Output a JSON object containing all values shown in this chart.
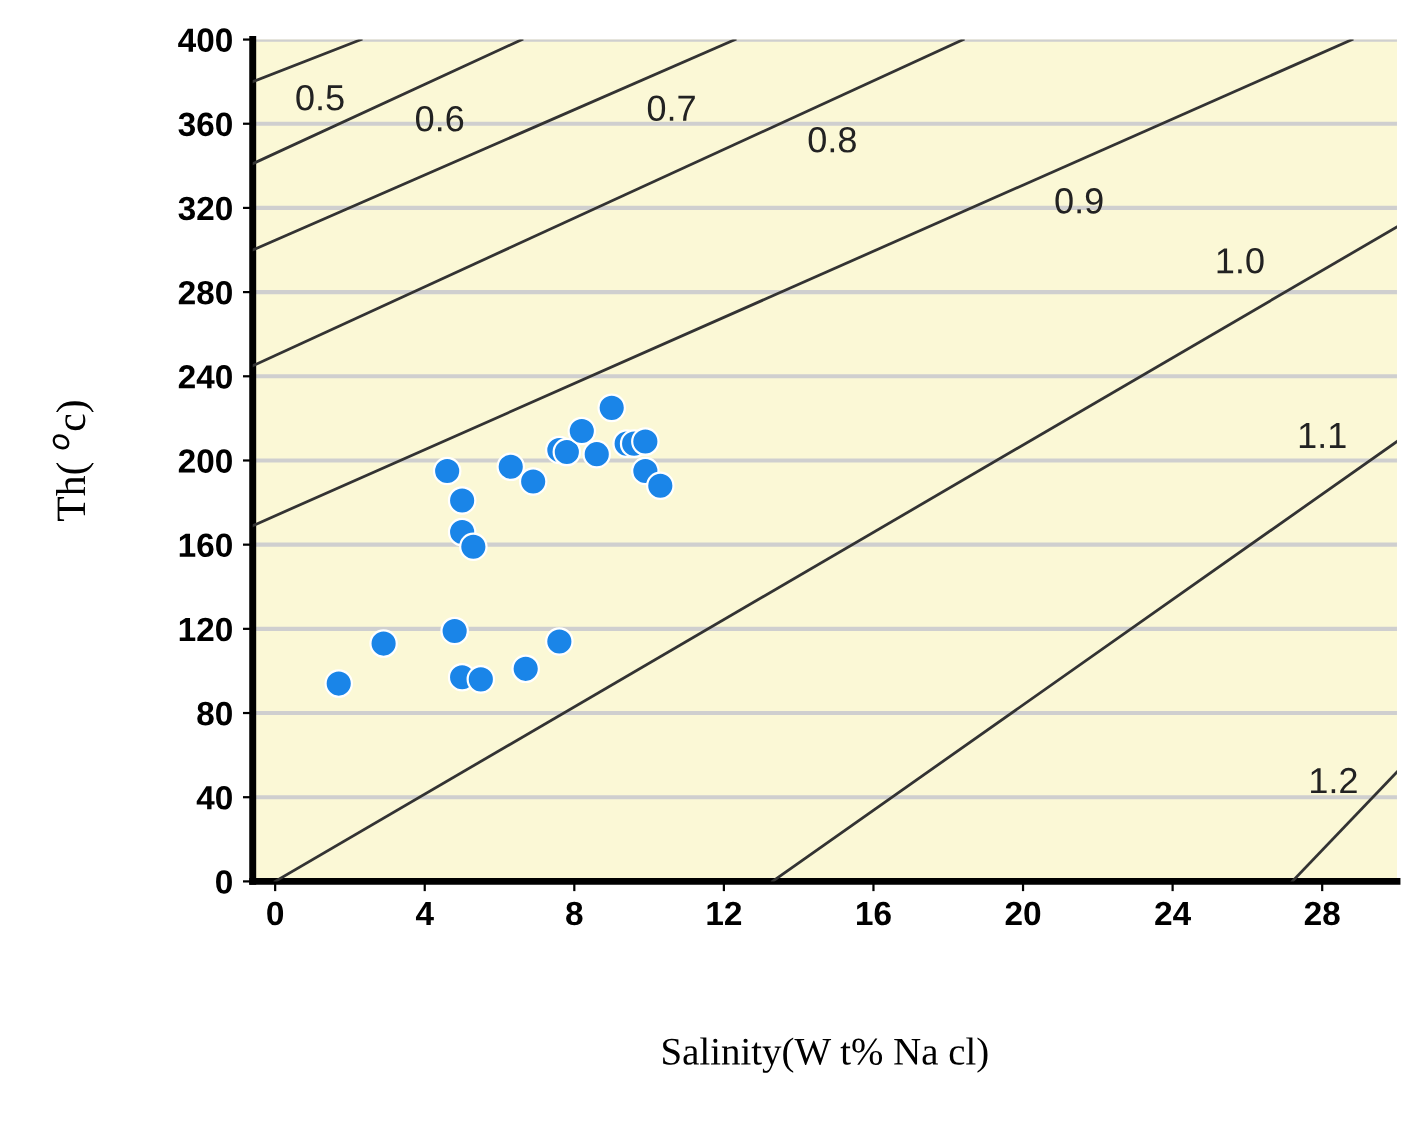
{
  "chart_data": {
    "type": "scatter",
    "xlabel": "Salinity(W t% Na cl)",
    "ylabel": "Th( $^{o}$c)",
    "xlim": [
      -0.6,
      30
    ],
    "ylim": [
      0,
      400
    ],
    "xticks": [
      0,
      4,
      8,
      12,
      16,
      20,
      24,
      28
    ],
    "yticks": [
      0,
      40,
      80,
      120,
      160,
      200,
      240,
      280,
      320,
      360,
      400
    ],
    "grid": "y",
    "legend": false,
    "series": [
      {
        "marker": "circle",
        "color": "#1a85e8",
        "x": [
          1.7,
          2.9,
          4.8,
          5.0,
          5.5,
          6.7,
          7.6,
          4.6,
          5.0,
          5.0,
          5.3,
          6.3,
          6.9,
          7.6,
          7.8,
          8.2,
          8.6,
          9.0,
          9.4,
          9.6,
          9.9,
          9.9,
          10.3
        ],
        "values": [
          94,
          113,
          119,
          97,
          96,
          101,
          114,
          195,
          181,
          166,
          159,
          197,
          190,
          205,
          204,
          214,
          203,
          225,
          208,
          208,
          209,
          195,
          188
        ]
      },
      {
        "type": "line",
        "marker": "none",
        "color": "#333333",
        "x": [
          -0.6,
          2.3
        ],
        "values": [
          380,
          400
        ]
      },
      {
        "type": "line",
        "marker": "none",
        "color": "#333333",
        "x": [
          -0.6,
          6.6
        ],
        "values": [
          341,
          400
        ]
      },
      {
        "type": "line",
        "marker": "none",
        "color": "#333333",
        "x": [
          -0.6,
          12.3
        ],
        "values": [
          300,
          400
        ]
      },
      {
        "type": "line",
        "marker": "none",
        "color": "#333333",
        "x": [
          -0.6,
          18.4
        ],
        "values": [
          245,
          400
        ]
      },
      {
        "type": "line",
        "marker": "none",
        "color": "#333333",
        "x": [
          -0.6,
          28.8
        ],
        "values": [
          169,
          400
        ]
      },
      {
        "type": "line",
        "marker": "none",
        "color": "#333333",
        "x": [
          0,
          30
        ],
        "values": [
          0,
          311
        ]
      },
      {
        "type": "line",
        "marker": "none",
        "color": "#333333",
        "x": [
          13.3,
          30
        ],
        "values": [
          0,
          209
        ]
      },
      {
        "type": "line",
        "marker": "none",
        "color": "#333333",
        "x": [
          27.2,
          30
        ],
        "values": [
          0,
          52
        ]
      }
    ],
    "annotations": [
      {
        "text": "0.5",
        "x": 1.2,
        "y": 392
      },
      {
        "text": "0.6",
        "x": 4.4,
        "y": 382
      },
      {
        "text": "0.7",
        "x": 10.6,
        "y": 387
      },
      {
        "text": "0.8",
        "x": 14.9,
        "y": 372
      },
      {
        "text": "0.9",
        "x": 21.5,
        "y": 343
      },
      {
        "text": "1.0",
        "x": 25.8,
        "y": 267
      },
      {
        "text": "1.1",
        "x": 28,
        "y": 184
      },
      {
        "text": "1.2",
        "x": 28.3,
        "y": 20
      }
    ]
  }
}
